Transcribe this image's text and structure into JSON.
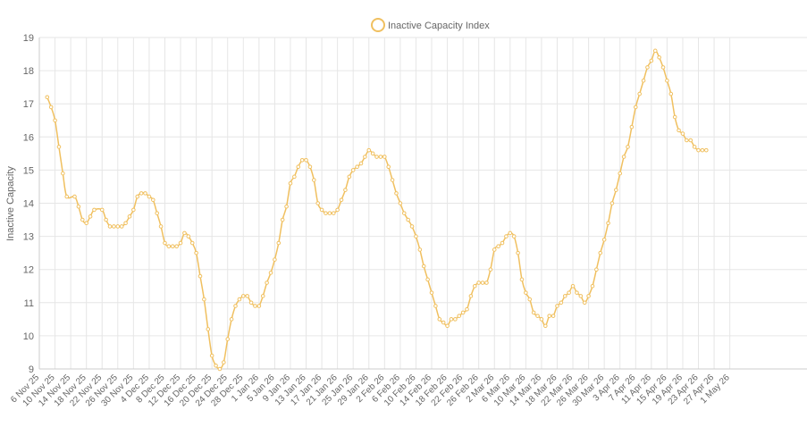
{
  "chart_data": {
    "type": "line",
    "legend": {
      "position": "top-center",
      "label": "Inactive Capacity Index"
    },
    "ylabel": "Inactive Capacity",
    "xlabel": "",
    "ylim": [
      9,
      19
    ],
    "yticks": [
      "9",
      "10",
      "11",
      "12",
      "13",
      "14",
      "15",
      "16",
      "17",
      "18",
      "19"
    ],
    "x_tick_labels": [
      "6 Nov 25",
      "10 Nov 25",
      "14 Nov 25",
      "18 Nov 25",
      "22 Nov 25",
      "26 Nov 25",
      "30 Nov 25",
      "4 Dec 25",
      "8 Dec 25",
      "12 Dec 25",
      "16 Dec 25",
      "20 Dec 25",
      "24 Dec 25",
      "28 Dec 25",
      "1 Jan 26",
      "5 Jan 26",
      "9 Jan 26",
      "13 Jan 26",
      "17 Jan 26",
      "21 Jan 26",
      "25 Jan 26",
      "29 Jan 26",
      "2 Feb 26",
      "6 Feb 26",
      "10 Feb 26",
      "14 Feb 26",
      "18 Feb 26",
      "22 Feb 26",
      "26 Feb 26",
      "2 Mar 26",
      "6 Mar 26",
      "10 Mar 26",
      "14 Mar 26",
      "18 Mar 26",
      "22 Mar 26",
      "26 Mar 26",
      "30 Mar 26",
      "3 Apr 26",
      "7 Apr 26",
      "11 Apr 26",
      "15 Apr 26",
      "19 Apr 26",
      "23 Apr 26",
      "27 Apr 26",
      "1 May 26"
    ],
    "grid": true,
    "color": "#f0c060",
    "series": [
      {
        "name": "Inactive Capacity Index",
        "points": [
          [
            "2025-11-08",
            17.2
          ],
          [
            "2025-11-09",
            16.9
          ],
          [
            "2025-11-10",
            16.5
          ],
          [
            "2025-11-11",
            15.7
          ],
          [
            "2025-11-12",
            14.9
          ],
          [
            "2025-11-13",
            14.2
          ],
          [
            "2025-11-15",
            14.2
          ],
          [
            "2025-11-16",
            13.9
          ],
          [
            "2025-11-17",
            13.5
          ],
          [
            "2025-11-18",
            13.4
          ],
          [
            "2025-11-19",
            13.6
          ],
          [
            "2025-11-20",
            13.8
          ],
          [
            "2025-11-22",
            13.8
          ],
          [
            "2025-11-23",
            13.5
          ],
          [
            "2025-11-24",
            13.3
          ],
          [
            "2025-11-25",
            13.3
          ],
          [
            "2025-11-26",
            13.3
          ],
          [
            "2025-11-27",
            13.3
          ],
          [
            "2025-11-28",
            13.4
          ],
          [
            "2025-11-29",
            13.6
          ],
          [
            "2025-11-30",
            13.8
          ],
          [
            "2025-12-01",
            14.2
          ],
          [
            "2025-12-02",
            14.3
          ],
          [
            "2025-12-03",
            14.3
          ],
          [
            "2025-12-04",
            14.2
          ],
          [
            "2025-12-05",
            14.1
          ],
          [
            "2025-12-06",
            13.7
          ],
          [
            "2025-12-07",
            13.3
          ],
          [
            "2025-12-08",
            12.8
          ],
          [
            "2025-12-09",
            12.7
          ],
          [
            "2025-12-10",
            12.7
          ],
          [
            "2025-12-11",
            12.7
          ],
          [
            "2025-12-12",
            12.8
          ],
          [
            "2025-12-13",
            13.1
          ],
          [
            "2025-12-14",
            13.0
          ],
          [
            "2025-12-15",
            12.8
          ],
          [
            "2025-12-16",
            12.5
          ],
          [
            "2025-12-17",
            11.8
          ],
          [
            "2025-12-18",
            11.1
          ],
          [
            "2025-12-19",
            10.2
          ],
          [
            "2025-12-20",
            9.4
          ],
          [
            "2025-12-21",
            9.1
          ],
          [
            "2025-12-22",
            9.0
          ],
          [
            "2025-12-23",
            9.2
          ],
          [
            "2025-12-24",
            9.9
          ],
          [
            "2025-12-25",
            10.5
          ],
          [
            "2025-12-26",
            10.9
          ],
          [
            "2025-12-27",
            11.1
          ],
          [
            "2025-12-28",
            11.2
          ],
          [
            "2025-12-29",
            11.2
          ],
          [
            "2025-12-30",
            11.0
          ],
          [
            "2025-12-31",
            10.9
          ],
          [
            "2026-01-01",
            10.9
          ],
          [
            "2026-01-02",
            11.2
          ],
          [
            "2026-01-03",
            11.6
          ],
          [
            "2026-01-04",
            11.9
          ],
          [
            "2026-01-05",
            12.3
          ],
          [
            "2026-01-06",
            12.8
          ],
          [
            "2026-01-07",
            13.5
          ],
          [
            "2026-01-08",
            13.9
          ],
          [
            "2026-01-09",
            14.6
          ],
          [
            "2026-01-10",
            14.8
          ],
          [
            "2026-01-11",
            15.1
          ],
          [
            "2026-01-12",
            15.3
          ],
          [
            "2026-01-13",
            15.3
          ],
          [
            "2026-01-14",
            15.1
          ],
          [
            "2026-01-15",
            14.7
          ],
          [
            "2026-01-16",
            14.0
          ],
          [
            "2026-01-17",
            13.8
          ],
          [
            "2026-01-18",
            13.7
          ],
          [
            "2026-01-19",
            13.7
          ],
          [
            "2026-01-20",
            13.7
          ],
          [
            "2026-01-21",
            13.8
          ],
          [
            "2026-01-22",
            14.1
          ],
          [
            "2026-01-23",
            14.4
          ],
          [
            "2026-01-24",
            14.8
          ],
          [
            "2026-01-25",
            15.0
          ],
          [
            "2026-01-26",
            15.1
          ],
          [
            "2026-01-27",
            15.2
          ],
          [
            "2026-01-28",
            15.4
          ],
          [
            "2026-01-29",
            15.6
          ],
          [
            "2026-01-30",
            15.5
          ],
          [
            "2026-01-31",
            15.4
          ],
          [
            "2026-02-01",
            15.4
          ],
          [
            "2026-02-02",
            15.4
          ],
          [
            "2026-02-03",
            15.1
          ],
          [
            "2026-02-04",
            14.7
          ],
          [
            "2026-02-05",
            14.3
          ],
          [
            "2026-02-06",
            14.0
          ],
          [
            "2026-02-07",
            13.7
          ],
          [
            "2026-02-08",
            13.5
          ],
          [
            "2026-02-09",
            13.3
          ],
          [
            "2026-02-10",
            13.0
          ],
          [
            "2026-02-11",
            12.6
          ],
          [
            "2026-02-12",
            12.1
          ],
          [
            "2026-02-13",
            11.7
          ],
          [
            "2026-02-14",
            11.3
          ],
          [
            "2026-02-15",
            10.9
          ],
          [
            "2026-02-16",
            10.5
          ],
          [
            "2026-02-17",
            10.4
          ],
          [
            "2026-02-18",
            10.3
          ],
          [
            "2026-02-19",
            10.5
          ],
          [
            "2026-02-20",
            10.5
          ],
          [
            "2026-02-21",
            10.6
          ],
          [
            "2026-02-22",
            10.7
          ],
          [
            "2026-02-23",
            10.8
          ],
          [
            "2026-02-24",
            11.2
          ],
          [
            "2026-02-25",
            11.5
          ],
          [
            "2026-02-26",
            11.6
          ],
          [
            "2026-02-27",
            11.6
          ],
          [
            "2026-02-28",
            11.6
          ],
          [
            "2026-03-01",
            12.0
          ],
          [
            "2026-03-02",
            12.6
          ],
          [
            "2026-03-03",
            12.7
          ],
          [
            "2026-03-04",
            12.8
          ],
          [
            "2026-03-05",
            13.0
          ],
          [
            "2026-03-06",
            13.1
          ],
          [
            "2026-03-07",
            13.0
          ],
          [
            "2026-03-08",
            12.5
          ],
          [
            "2026-03-09",
            11.7
          ],
          [
            "2026-03-10",
            11.3
          ],
          [
            "2026-03-11",
            11.1
          ],
          [
            "2026-03-12",
            10.7
          ],
          [
            "2026-03-13",
            10.6
          ],
          [
            "2026-03-14",
            10.5
          ],
          [
            "2026-03-15",
            10.3
          ],
          [
            "2026-03-16",
            10.6
          ],
          [
            "2026-03-17",
            10.6
          ],
          [
            "2026-03-18",
            10.9
          ],
          [
            "2026-03-19",
            11.0
          ],
          [
            "2026-03-20",
            11.2
          ],
          [
            "2026-03-21",
            11.3
          ],
          [
            "2026-03-22",
            11.5
          ],
          [
            "2026-03-23",
            11.3
          ],
          [
            "2026-03-24",
            11.2
          ],
          [
            "2026-03-25",
            11.0
          ],
          [
            "2026-03-26",
            11.2
          ],
          [
            "2026-03-27",
            11.5
          ],
          [
            "2026-03-28",
            12.0
          ],
          [
            "2026-03-29",
            12.5
          ],
          [
            "2026-03-30",
            12.9
          ],
          [
            "2026-03-31",
            13.4
          ],
          [
            "2026-04-01",
            14.0
          ],
          [
            "2026-04-02",
            14.4
          ],
          [
            "2026-04-03",
            14.9
          ],
          [
            "2026-04-04",
            15.4
          ],
          [
            "2026-04-05",
            15.7
          ],
          [
            "2026-04-06",
            16.3
          ],
          [
            "2026-04-07",
            16.9
          ],
          [
            "2026-04-08",
            17.3
          ],
          [
            "2026-04-09",
            17.7
          ],
          [
            "2026-04-10",
            18.1
          ],
          [
            "2026-04-11",
            18.3
          ],
          [
            "2026-04-12",
            18.6
          ],
          [
            "2026-04-13",
            18.4
          ],
          [
            "2026-04-14",
            18.1
          ],
          [
            "2026-04-15",
            17.7
          ],
          [
            "2026-04-16",
            17.3
          ],
          [
            "2026-04-17",
            16.6
          ],
          [
            "2026-04-18",
            16.2
          ],
          [
            "2026-04-19",
            16.1
          ],
          [
            "2026-04-20",
            15.9
          ],
          [
            "2026-04-21",
            15.9
          ],
          [
            "2026-04-22",
            15.7
          ],
          [
            "2026-04-23",
            15.6
          ],
          [
            "2026-04-24",
            15.6
          ],
          [
            "2026-04-25",
            15.6
          ]
        ]
      }
    ]
  }
}
